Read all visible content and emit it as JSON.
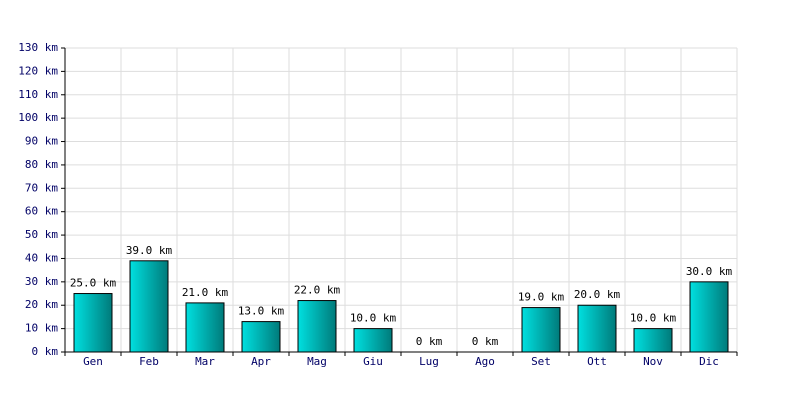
{
  "chart_data": {
    "type": "bar",
    "categories": [
      "Gen",
      "Feb",
      "Mar",
      "Apr",
      "Mag",
      "Giu",
      "Lug",
      "Ago",
      "Set",
      "Ott",
      "Nov",
      "Dic"
    ],
    "values": [
      25,
      39,
      21,
      13,
      22,
      10,
      0,
      0,
      19,
      20,
      10,
      30
    ],
    "value_labels": [
      "25.0 km",
      "39.0 km",
      "21.0 km",
      "13.0 km",
      "22.0 km",
      "10.0 km",
      "0 km",
      "0 km",
      "19.0 km",
      "20.0 km",
      "10.0 km",
      "30.0 km"
    ],
    "color": "#00e0e0",
    "ylim": [
      0,
      130
    ],
    "yticks": [
      {
        "value": 0,
        "label": "0 km"
      },
      {
        "value": 10,
        "label": "10 km"
      },
      {
        "value": 20,
        "label": "20 km"
      },
      {
        "value": 30,
        "label": "30 km"
      },
      {
        "value": 40,
        "label": "40 km"
      },
      {
        "value": 50,
        "label": "50 km"
      },
      {
        "value": 60,
        "label": "60 km"
      },
      {
        "value": 70,
        "label": "70 km"
      },
      {
        "value": 80,
        "label": "80 km"
      },
      {
        "value": 90,
        "label": "90 km"
      },
      {
        "value": 100,
        "label": "100 km"
      },
      {
        "value": 110,
        "label": "110 km"
      },
      {
        "value": 120,
        "label": "120 km"
      },
      {
        "value": 130,
        "label": "130 km"
      }
    ],
    "grid": true
  }
}
